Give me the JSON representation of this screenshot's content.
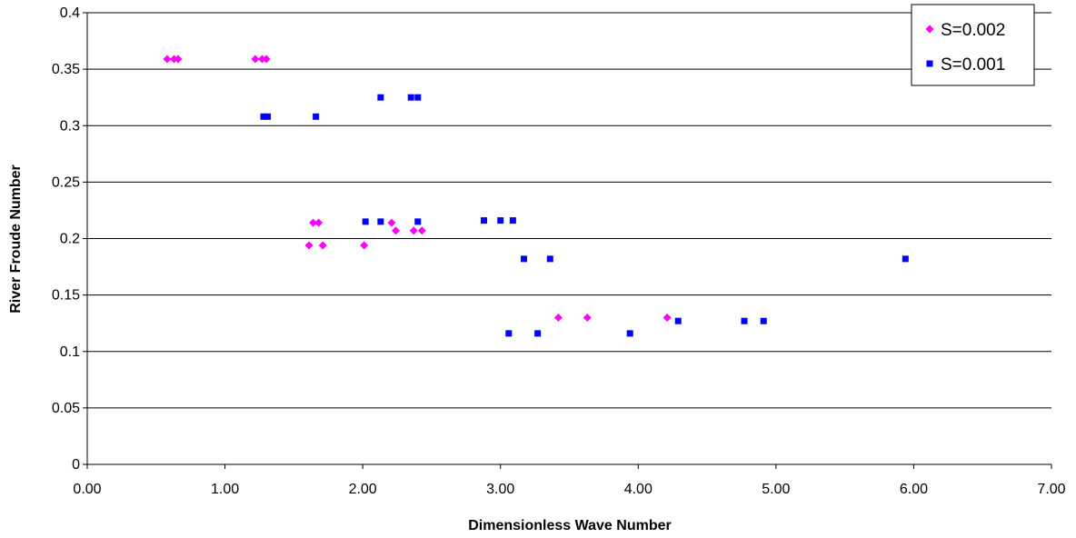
{
  "chart_data": {
    "type": "scatter",
    "title": "",
    "xlabel": "Dimensionless Wave Number",
    "ylabel": "River Froude Number",
    "xlim": [
      0,
      7
    ],
    "ylim": [
      0,
      0.4
    ],
    "x_ticks": [
      "0.00",
      "1.00",
      "2.00",
      "3.00",
      "4.00",
      "5.00",
      "6.00",
      "7.00"
    ],
    "y_ticks": [
      "0",
      "0.05",
      "0.1",
      "0.15",
      "0.2",
      "0.25",
      "0.3",
      "0.35",
      "0.4"
    ],
    "grid": "horizontal",
    "legend_position": "top-right",
    "series": [
      {
        "name": "S=0.002",
        "marker": "diamond",
        "color": "#ff00ff",
        "points": [
          [
            0.58,
            0.359
          ],
          [
            0.63,
            0.359
          ],
          [
            0.66,
            0.359
          ],
          [
            1.22,
            0.359
          ],
          [
            1.27,
            0.359
          ],
          [
            1.3,
            0.359
          ],
          [
            1.64,
            0.214
          ],
          [
            1.68,
            0.214
          ],
          [
            1.61,
            0.194
          ],
          [
            1.71,
            0.194
          ],
          [
            2.01,
            0.194
          ],
          [
            2.21,
            0.214
          ],
          [
            2.24,
            0.207
          ],
          [
            2.37,
            0.207
          ],
          [
            2.43,
            0.207
          ],
          [
            3.42,
            0.13
          ],
          [
            3.63,
            0.13
          ],
          [
            4.21,
            0.13
          ]
        ]
      },
      {
        "name": "S=0.001",
        "marker": "square",
        "color": "#0000ff",
        "points": [
          [
            1.28,
            0.308
          ],
          [
            1.31,
            0.308
          ],
          [
            1.66,
            0.308
          ],
          [
            2.13,
            0.325
          ],
          [
            2.35,
            0.325
          ],
          [
            2.4,
            0.325
          ],
          [
            2.02,
            0.215
          ],
          [
            2.13,
            0.215
          ],
          [
            2.4,
            0.215
          ],
          [
            2.88,
            0.216
          ],
          [
            3.0,
            0.216
          ],
          [
            3.09,
            0.216
          ],
          [
            3.17,
            0.182
          ],
          [
            3.36,
            0.182
          ],
          [
            5.94,
            0.182
          ],
          [
            3.06,
            0.116
          ],
          [
            3.27,
            0.116
          ],
          [
            3.94,
            0.116
          ],
          [
            4.29,
            0.127
          ],
          [
            4.77,
            0.127
          ],
          [
            4.91,
            0.127
          ]
        ]
      }
    ]
  }
}
